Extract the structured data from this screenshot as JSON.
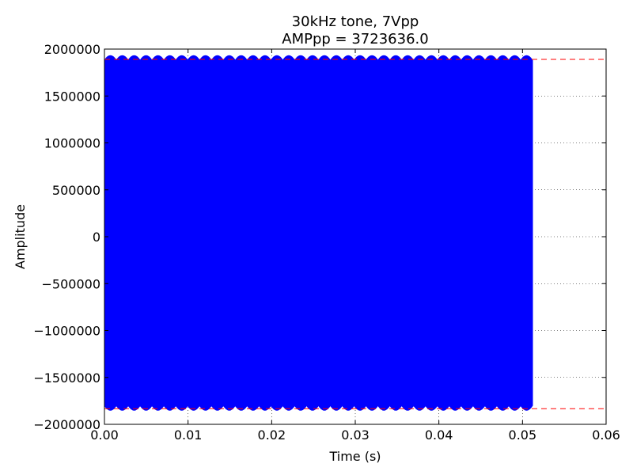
{
  "chart_data": {
    "type": "line",
    "title_lines": [
      "30kHz tone, 7Vpp",
      "AMPpp = 3723636.0"
    ],
    "xlabel": "Time (s)",
    "ylabel": "Amplitude",
    "xlim": [
      0.0,
      0.06
    ],
    "ylim": [
      -2000000,
      2000000
    ],
    "xticks": [
      0.0,
      0.01,
      0.02,
      0.03,
      0.04,
      0.05,
      0.06
    ],
    "xtick_labels": [
      "0.00",
      "0.01",
      "0.02",
      "0.03",
      "0.04",
      "0.05",
      "0.06"
    ],
    "yticks": [
      2000000,
      1500000,
      1000000,
      500000,
      0,
      -500000,
      -1000000,
      -1500000,
      -2000000
    ],
    "ytick_labels": [
      "2000000",
      "1500000",
      "1000000",
      "500000",
      "0",
      "−500000",
      "−1000000",
      "−1500000",
      "−2000000"
    ],
    "grid": true,
    "series": [
      {
        "color": "#0000ff",
        "signal": {
          "frequency_hz": 30000,
          "t_start": 0.0,
          "t_end": 0.0512,
          "max": 1930000,
          "min": -1850000,
          "beat_count": 36
        }
      }
    ],
    "reference_lines": [
      {
        "y": 1890000,
        "color": "#ff0000",
        "style": "dashed"
      },
      {
        "y": -1833636,
        "color": "#ff0000",
        "style": "dashed"
      }
    ]
  }
}
